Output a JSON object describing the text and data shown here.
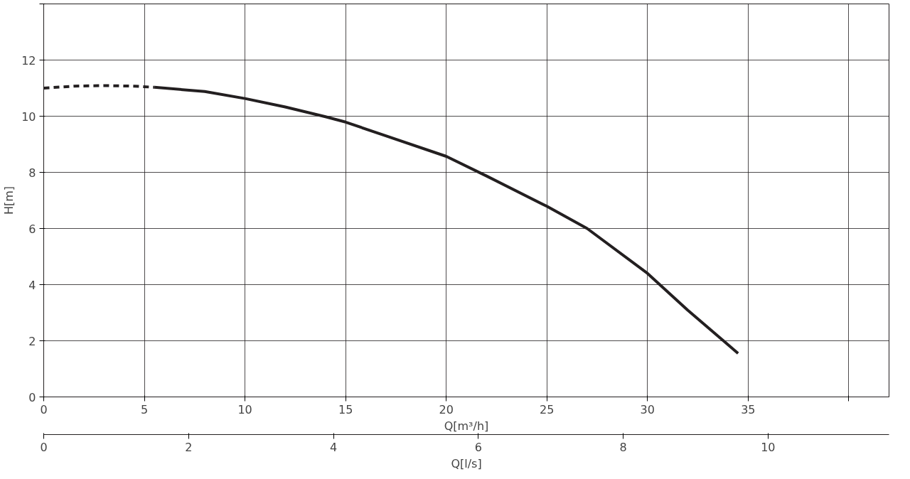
{
  "chart_data": {
    "type": "line",
    "xlabel": "Q[m³/h]",
    "ylabel": "H[m]",
    "x2label": "Q[l/s]",
    "xlim": [
      0,
      42
    ],
    "xticks": [
      0,
      5,
      10,
      15,
      20,
      25,
      30,
      35,
      {
        "value": 40,
        "label": null
      }
    ],
    "ylim": [
      0,
      14
    ],
    "yticks": [
      0,
      2,
      4,
      6,
      8,
      10,
      12,
      {
        "value": 14,
        "label": null
      }
    ],
    "x2lim": [
      0,
      11.67
    ],
    "x2ticks": [
      0,
      2,
      4,
      6,
      8,
      10
    ],
    "grid": true,
    "series": [
      {
        "color": "#231f20",
        "line_style": "dashed",
        "x": [
          0,
          1.5,
          3,
          4.5,
          5.5
        ],
        "values": [
          11.0,
          11.07,
          11.09,
          11.07,
          11.03
        ]
      },
      {
        "color": "#231f20",
        "line_style": "solid",
        "x": [
          5.5,
          8,
          10,
          12,
          14,
          15,
          17,
          20,
          22,
          25,
          27,
          30,
          32,
          34.5
        ],
        "values": [
          11.03,
          10.88,
          10.63,
          10.33,
          9.98,
          9.79,
          9.3,
          8.57,
          7.87,
          6.79,
          6.0,
          4.4,
          3.09,
          1.55
        ]
      }
    ]
  }
}
